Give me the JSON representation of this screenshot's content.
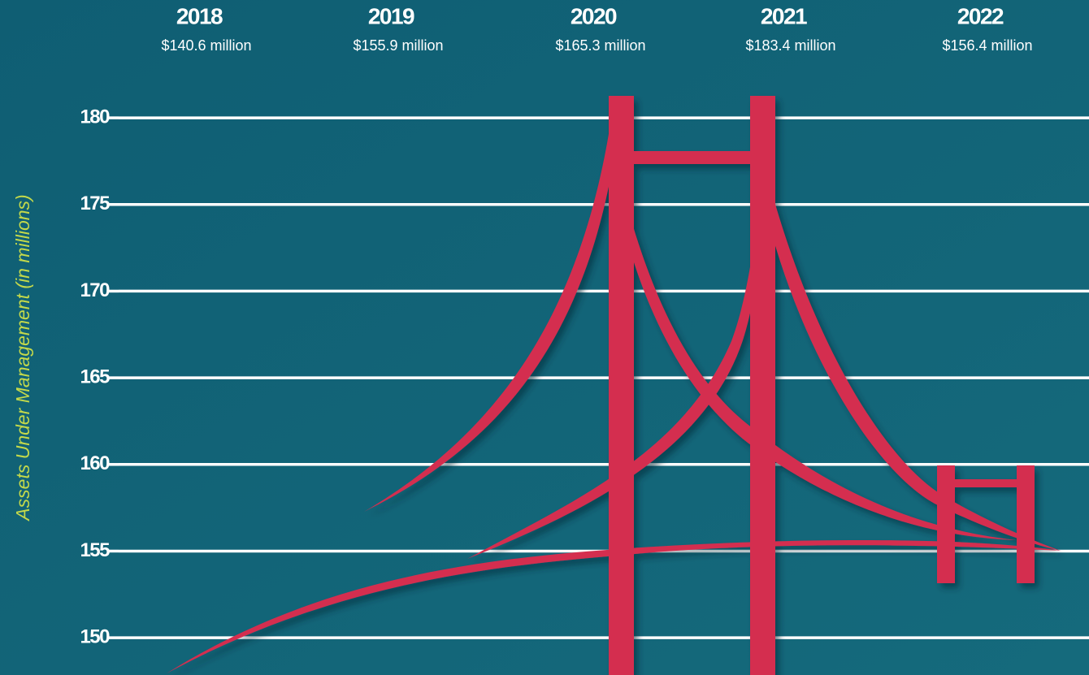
{
  "chart_data": {
    "type": "bridge",
    "y_label": "Assets Under Management (in millions)",
    "categories": [
      "2018",
      "2019",
      "2020",
      "2021",
      "2022"
    ],
    "values": [
      140.6,
      155.9,
      165.3,
      183.4,
      156.4
    ],
    "value_labels": [
      "$140.6 million",
      "$155.9 million",
      "$165.3  million",
      "$183.4  million",
      "$156.4 million"
    ],
    "ylim": [
      147.85,
      186.8
    ],
    "yticks": [
      150,
      155,
      160,
      165,
      170,
      175,
      180
    ],
    "grid": true
  }
}
